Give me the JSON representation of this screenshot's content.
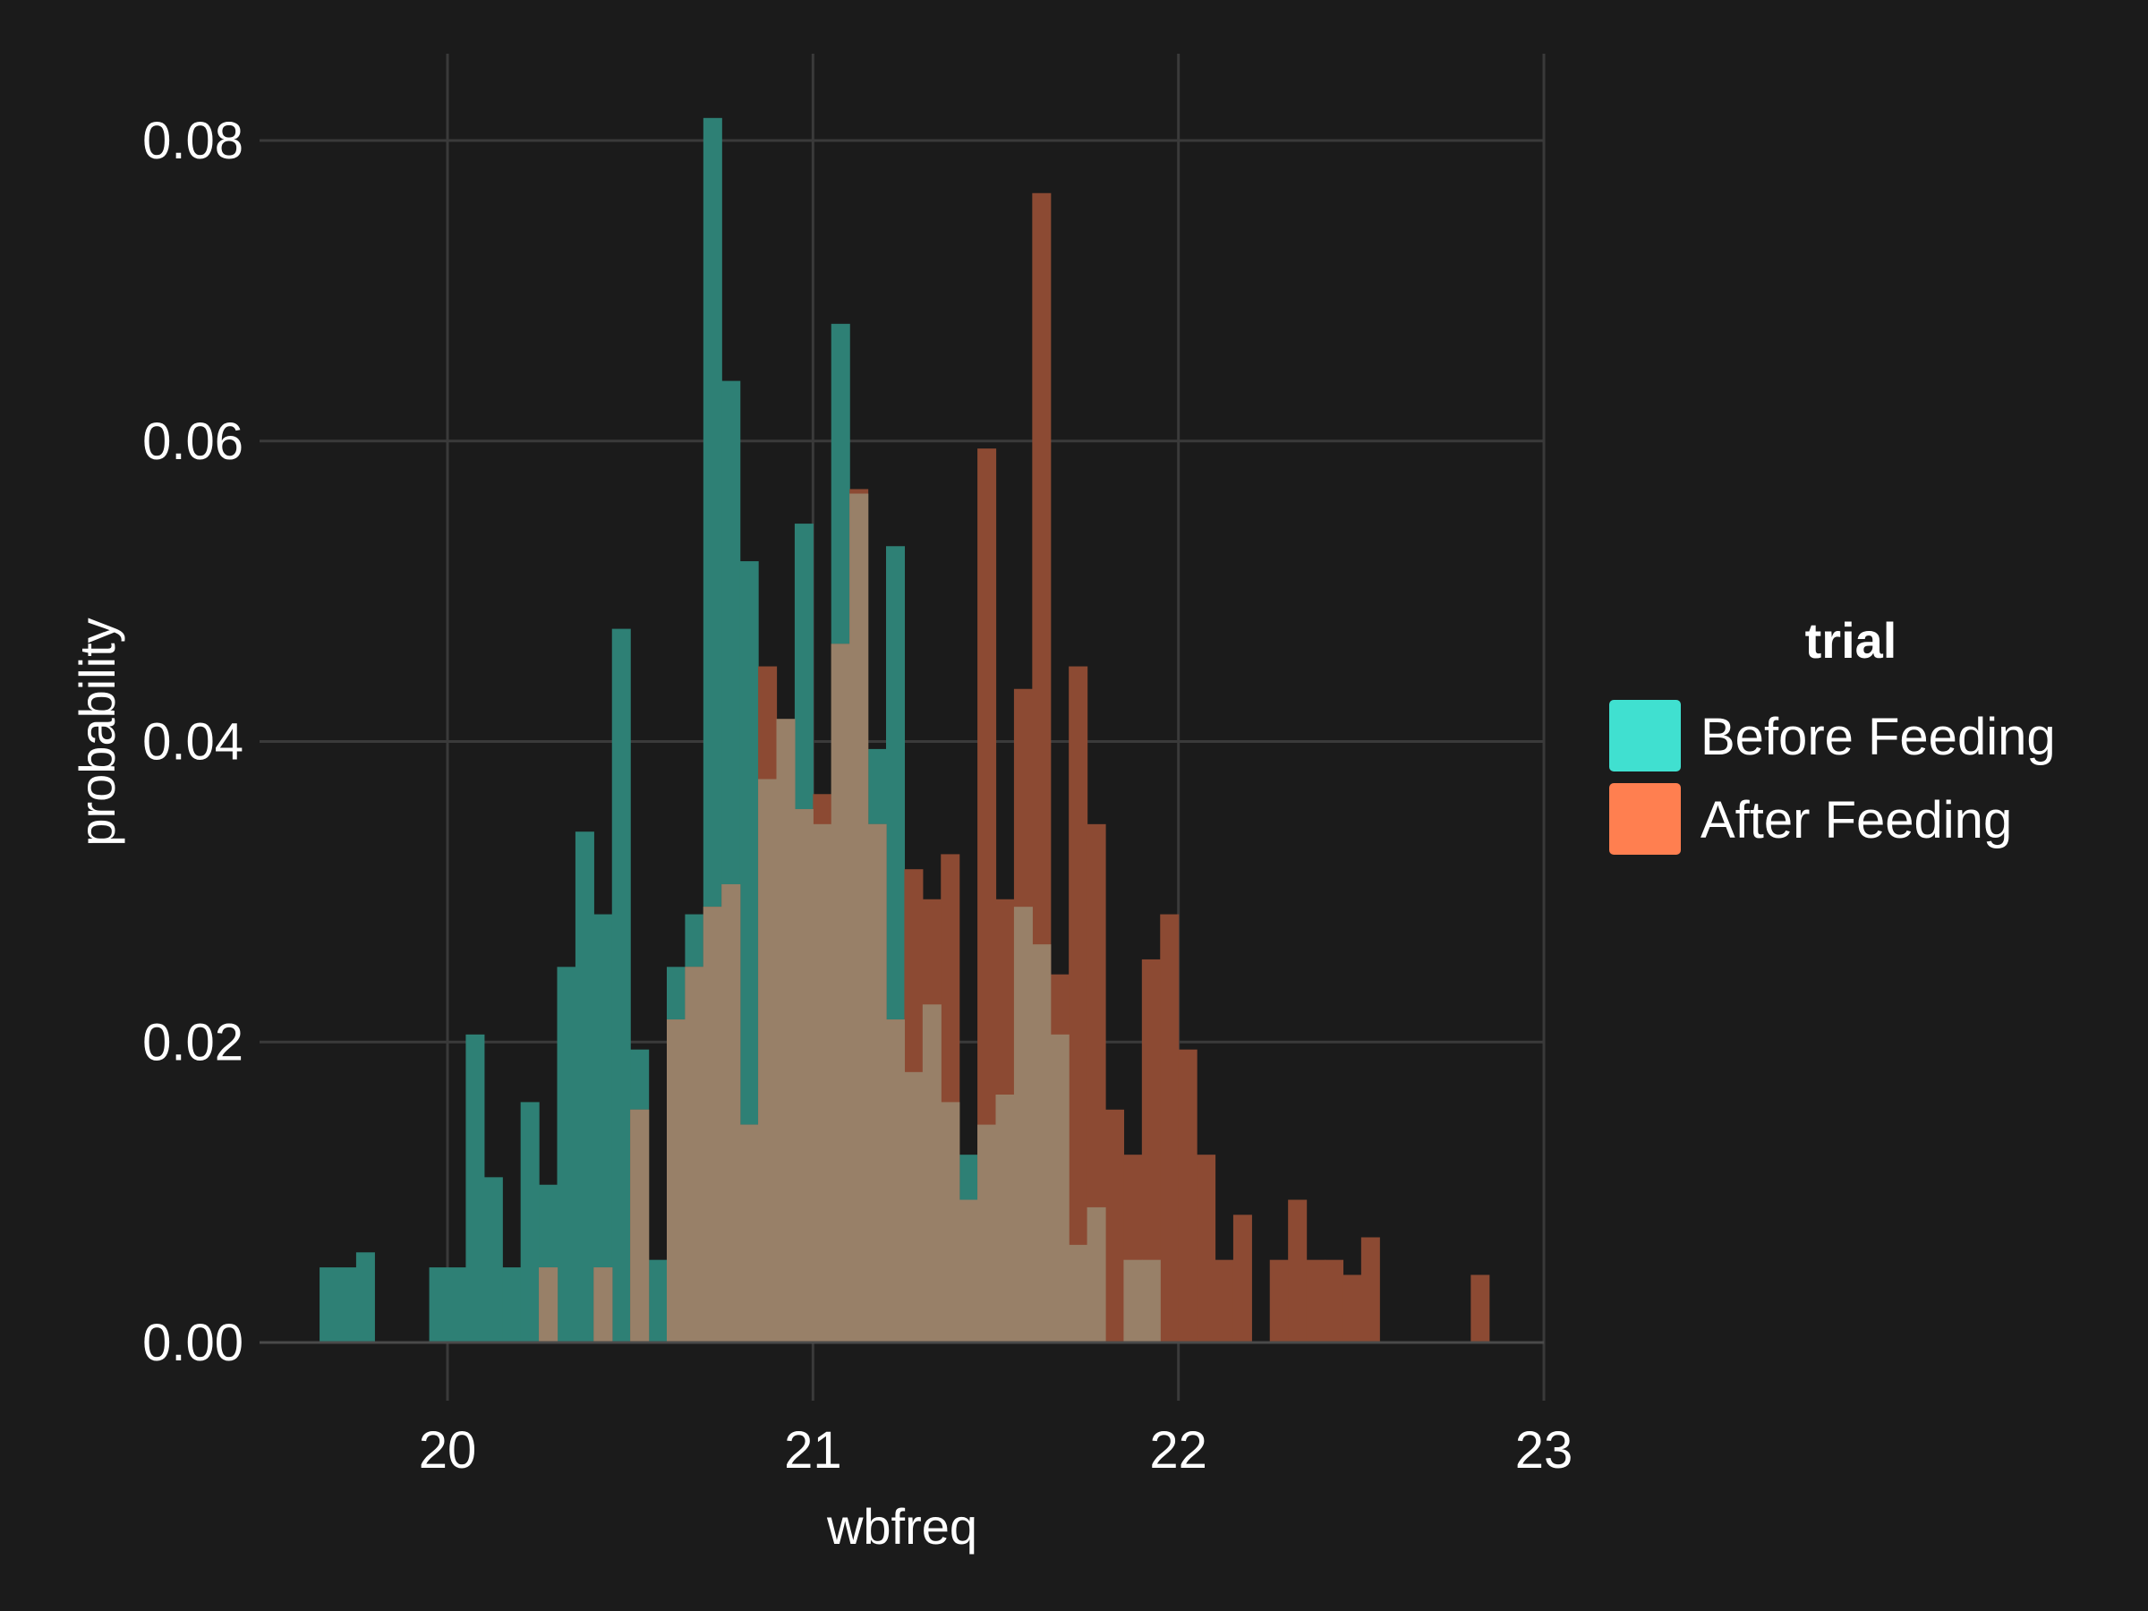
{
  "chart_data": {
    "type": "bar",
    "xlabel": "wbfreq",
    "ylabel": "probability",
    "xlim": [
      19.5,
      23
    ],
    "ylim": [
      0,
      0.085
    ],
    "x_ticks": [
      "20",
      "21",
      "22",
      "23"
    ],
    "y_ticks": [
      "0.00",
      "0.02",
      "0.04",
      "0.06",
      "0.08"
    ],
    "grid": true,
    "bin_width": 0.05,
    "legend": {
      "title": "trial",
      "position": "right"
    },
    "series": [
      {
        "name": "Before Feeding",
        "color": "#40e0d0",
        "render_color": "#2e8075",
        "bins": [
          [
            19.65,
            19.7,
            0.005
          ],
          [
            19.7,
            19.75,
            0.005
          ],
          [
            19.75,
            19.8,
            0.006
          ],
          [
            19.95,
            20.0,
            0.005
          ],
          [
            20.0,
            20.05,
            0.005
          ],
          [
            20.05,
            20.1,
            0.0205
          ],
          [
            20.1,
            20.15,
            0.011
          ],
          [
            20.15,
            20.2,
            0.005
          ],
          [
            20.2,
            20.25,
            0.016
          ],
          [
            20.25,
            20.3,
            0.0105
          ],
          [
            20.3,
            20.35,
            0.025
          ],
          [
            20.35,
            20.4,
            0.034
          ],
          [
            20.4,
            20.45,
            0.0285
          ],
          [
            20.45,
            20.5,
            0.0475
          ],
          [
            20.5,
            20.55,
            0.0195
          ],
          [
            20.55,
            20.6,
            0.0055
          ],
          [
            20.6,
            20.65,
            0.025
          ],
          [
            20.65,
            20.7,
            0.0285
          ],
          [
            20.7,
            20.75,
            0.0815
          ],
          [
            20.75,
            20.8,
            0.064
          ],
          [
            20.8,
            20.85,
            0.052
          ],
          [
            20.85,
            20.9,
            0.0375
          ],
          [
            20.9,
            20.95,
            0.0415
          ],
          [
            20.95,
            21.0,
            0.0545
          ],
          [
            21.0,
            21.05,
            0.0345
          ],
          [
            21.05,
            21.1,
            0.0678
          ],
          [
            21.1,
            21.15,
            0.0565
          ],
          [
            21.15,
            21.2,
            0.0395
          ],
          [
            21.2,
            21.25,
            0.053
          ],
          [
            21.25,
            21.3,
            0.018
          ],
          [
            21.3,
            21.35,
            0.0225
          ],
          [
            21.35,
            21.4,
            0.016
          ],
          [
            21.4,
            21.45,
            0.0125
          ],
          [
            21.45,
            21.5,
            0.0145
          ],
          [
            21.5,
            21.55,
            0.0165
          ],
          [
            21.55,
            21.6,
            0.029
          ],
          [
            21.6,
            21.65,
            0.0265
          ],
          [
            21.65,
            21.7,
            0.0205
          ],
          [
            21.7,
            21.75,
            0.0065
          ],
          [
            21.75,
            21.8,
            0.009
          ],
          [
            21.85,
            21.9,
            0.0055
          ],
          [
            21.9,
            21.95,
            0.0055
          ]
        ]
      },
      {
        "name": "After Feeding",
        "color": "#ff7f50",
        "render_color": "#8c4a33",
        "bins": [
          [
            20.25,
            20.3,
            0.005
          ],
          [
            20.4,
            20.45,
            0.005
          ],
          [
            20.5,
            20.55,
            0.0155
          ],
          [
            20.6,
            20.65,
            0.0215
          ],
          [
            20.65,
            20.7,
            0.025
          ],
          [
            20.7,
            20.75,
            0.029
          ],
          [
            20.75,
            20.8,
            0.0305
          ],
          [
            20.8,
            20.85,
            0.0145
          ],
          [
            20.85,
            20.9,
            0.045
          ],
          [
            20.9,
            20.95,
            0.0415
          ],
          [
            20.95,
            21.0,
            0.0355
          ],
          [
            21.0,
            21.05,
            0.0365
          ],
          [
            21.05,
            21.1,
            0.0465
          ],
          [
            21.1,
            21.15,
            0.0568
          ],
          [
            21.15,
            21.2,
            0.0345
          ],
          [
            21.2,
            21.25,
            0.0215
          ],
          [
            21.25,
            21.3,
            0.0315
          ],
          [
            21.3,
            21.35,
            0.0295
          ],
          [
            21.35,
            21.4,
            0.0325
          ],
          [
            21.4,
            21.45,
            0.0095
          ],
          [
            21.45,
            21.5,
            0.0595
          ],
          [
            21.5,
            21.55,
            0.0295
          ],
          [
            21.55,
            21.6,
            0.0435
          ],
          [
            21.6,
            21.65,
            0.0765
          ],
          [
            21.65,
            21.7,
            0.0245
          ],
          [
            21.7,
            21.75,
            0.045
          ],
          [
            21.75,
            21.8,
            0.0345
          ],
          [
            21.8,
            21.85,
            0.0155
          ],
          [
            21.85,
            21.9,
            0.0125
          ],
          [
            21.9,
            21.95,
            0.0255
          ],
          [
            21.95,
            22.0,
            0.0285
          ],
          [
            22.0,
            22.05,
            0.0195
          ],
          [
            22.05,
            22.1,
            0.0125
          ],
          [
            22.1,
            22.15,
            0.0055
          ],
          [
            22.15,
            22.2,
            0.0085
          ],
          [
            22.25,
            22.3,
            0.0055
          ],
          [
            22.3,
            22.35,
            0.0095
          ],
          [
            22.35,
            22.4,
            0.0055
          ],
          [
            22.4,
            22.45,
            0.0055
          ],
          [
            22.45,
            22.5,
            0.0045
          ],
          [
            22.5,
            22.55,
            0.007
          ],
          [
            22.8,
            22.85,
            0.0045
          ]
        ]
      }
    ]
  }
}
